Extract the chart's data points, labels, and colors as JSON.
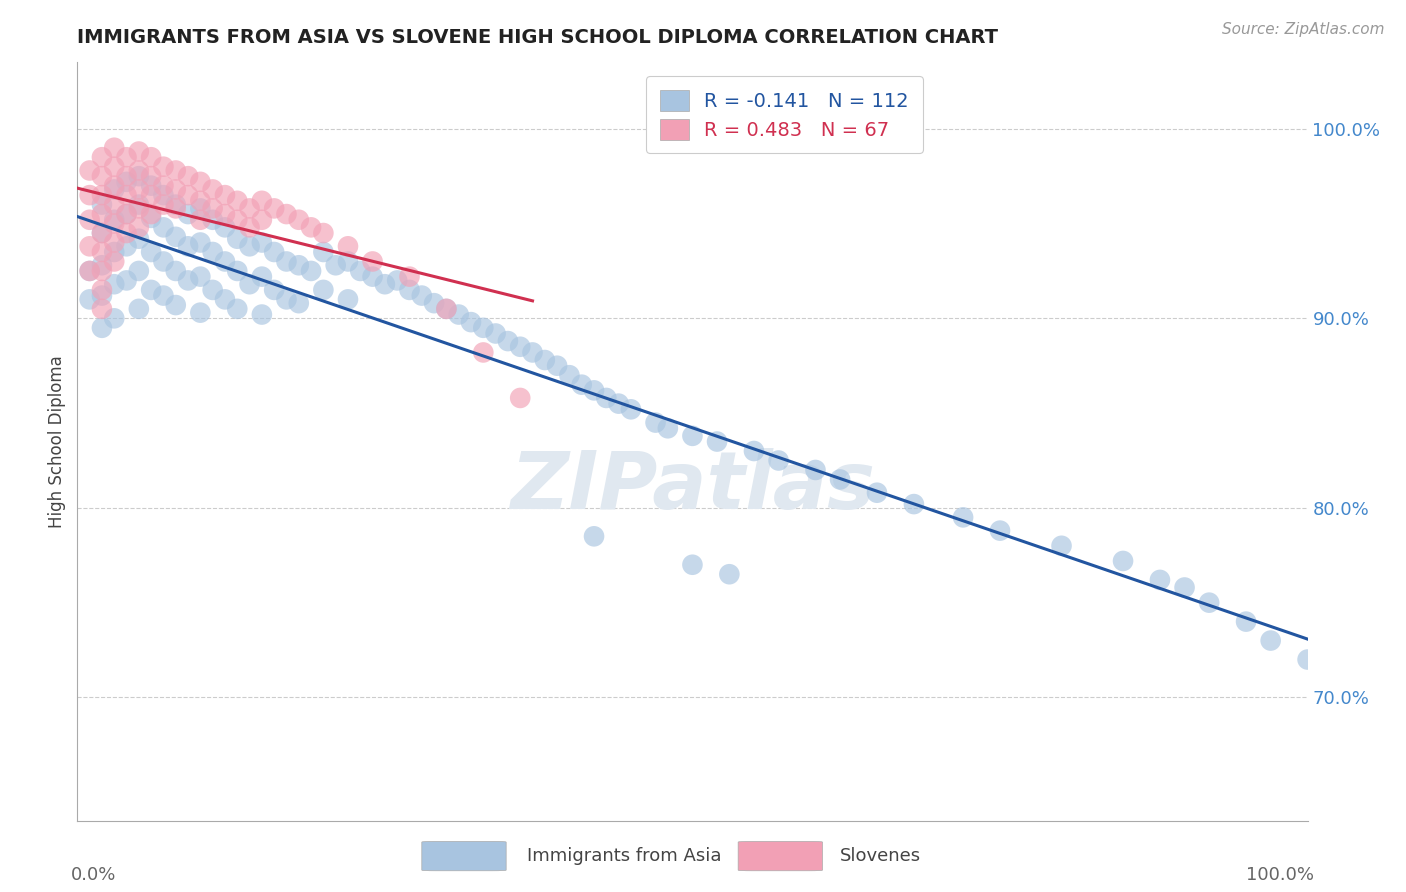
{
  "title": "IMMIGRANTS FROM ASIA VS SLOVENE HIGH SCHOOL DIPLOMA CORRELATION CHART",
  "source": "Source: ZipAtlas.com",
  "ylabel": "High School Diploma",
  "legend_labels": [
    "Immigrants from Asia",
    "Slovenes"
  ],
  "legend_r": [
    -0.141,
    0.483
  ],
  "legend_n": [
    112,
    67
  ],
  "blue_color": "#a8c4e0",
  "pink_color": "#f2a0b5",
  "blue_line_color": "#2255a0",
  "pink_line_color": "#d03050",
  "xlim": [
    0.0,
    1.0
  ],
  "ylim": [
    0.635,
    1.035
  ],
  "right_yticks": [
    0.7,
    0.8,
    0.9,
    1.0
  ],
  "right_yticklabels": [
    "70.0%",
    "80.0%",
    "90.0%",
    "100.0%"
  ],
  "xticklabels": [
    "0.0%",
    "100.0%"
  ],
  "watermark": "ZIPatlas",
  "blue_x": [
    0.01,
    0.01,
    0.02,
    0.02,
    0.02,
    0.02,
    0.02,
    0.03,
    0.03,
    0.03,
    0.03,
    0.03,
    0.04,
    0.04,
    0.04,
    0.04,
    0.05,
    0.05,
    0.05,
    0.05,
    0.05,
    0.06,
    0.06,
    0.06,
    0.06,
    0.07,
    0.07,
    0.07,
    0.07,
    0.08,
    0.08,
    0.08,
    0.08,
    0.09,
    0.09,
    0.09,
    0.1,
    0.1,
    0.1,
    0.1,
    0.11,
    0.11,
    0.11,
    0.12,
    0.12,
    0.12,
    0.13,
    0.13,
    0.13,
    0.14,
    0.14,
    0.15,
    0.15,
    0.15,
    0.16,
    0.16,
    0.17,
    0.17,
    0.18,
    0.18,
    0.19,
    0.2,
    0.2,
    0.21,
    0.22,
    0.22,
    0.23,
    0.24,
    0.25,
    0.26,
    0.27,
    0.28,
    0.29,
    0.3,
    0.31,
    0.32,
    0.33,
    0.34,
    0.35,
    0.36,
    0.37,
    0.38,
    0.39,
    0.4,
    0.41,
    0.42,
    0.43,
    0.44,
    0.45,
    0.47,
    0.48,
    0.5,
    0.52,
    0.55,
    0.57,
    0.6,
    0.62,
    0.65,
    0.68,
    0.72,
    0.75,
    0.8,
    0.85,
    0.88,
    0.9,
    0.92,
    0.95,
    0.97,
    1.0,
    0.5,
    0.53,
    0.42
  ],
  "blue_y": [
    0.925,
    0.91,
    0.96,
    0.945,
    0.928,
    0.912,
    0.895,
    0.968,
    0.952,
    0.935,
    0.918,
    0.9,
    0.972,
    0.955,
    0.938,
    0.92,
    0.975,
    0.96,
    0.942,
    0.925,
    0.905,
    0.97,
    0.953,
    0.935,
    0.915,
    0.965,
    0.948,
    0.93,
    0.912,
    0.96,
    0.943,
    0.925,
    0.907,
    0.955,
    0.938,
    0.92,
    0.958,
    0.94,
    0.922,
    0.903,
    0.952,
    0.935,
    0.915,
    0.948,
    0.93,
    0.91,
    0.942,
    0.925,
    0.905,
    0.938,
    0.918,
    0.94,
    0.922,
    0.902,
    0.935,
    0.915,
    0.93,
    0.91,
    0.928,
    0.908,
    0.925,
    0.935,
    0.915,
    0.928,
    0.93,
    0.91,
    0.925,
    0.922,
    0.918,
    0.92,
    0.915,
    0.912,
    0.908,
    0.905,
    0.902,
    0.898,
    0.895,
    0.892,
    0.888,
    0.885,
    0.882,
    0.878,
    0.875,
    0.87,
    0.865,
    0.862,
    0.858,
    0.855,
    0.852,
    0.845,
    0.842,
    0.838,
    0.835,
    0.83,
    0.825,
    0.82,
    0.815,
    0.808,
    0.802,
    0.795,
    0.788,
    0.78,
    0.772,
    0.762,
    0.758,
    0.75,
    0.74,
    0.73,
    0.72,
    0.77,
    0.765,
    0.785
  ],
  "pink_x": [
    0.01,
    0.01,
    0.01,
    0.01,
    0.01,
    0.02,
    0.02,
    0.02,
    0.02,
    0.02,
    0.02,
    0.02,
    0.02,
    0.02,
    0.03,
    0.03,
    0.03,
    0.03,
    0.03,
    0.03,
    0.03,
    0.04,
    0.04,
    0.04,
    0.04,
    0.04,
    0.05,
    0.05,
    0.05,
    0.05,
    0.05,
    0.06,
    0.06,
    0.06,
    0.06,
    0.07,
    0.07,
    0.07,
    0.08,
    0.08,
    0.08,
    0.09,
    0.09,
    0.1,
    0.1,
    0.1,
    0.11,
    0.11,
    0.12,
    0.12,
    0.13,
    0.13,
    0.14,
    0.14,
    0.15,
    0.15,
    0.16,
    0.17,
    0.18,
    0.19,
    0.2,
    0.22,
    0.24,
    0.27,
    0.3,
    0.33,
    0.36
  ],
  "pink_y": [
    0.978,
    0.965,
    0.952,
    0.938,
    0.925,
    0.985,
    0.975,
    0.965,
    0.955,
    0.945,
    0.935,
    0.925,
    0.915,
    0.905,
    0.99,
    0.98,
    0.97,
    0.96,
    0.95,
    0.94,
    0.93,
    0.985,
    0.975,
    0.965,
    0.955,
    0.945,
    0.988,
    0.978,
    0.968,
    0.958,
    0.948,
    0.985,
    0.975,
    0.965,
    0.955,
    0.98,
    0.97,
    0.96,
    0.978,
    0.968,
    0.958,
    0.975,
    0.965,
    0.972,
    0.962,
    0.952,
    0.968,
    0.958,
    0.965,
    0.955,
    0.962,
    0.952,
    0.958,
    0.948,
    0.962,
    0.952,
    0.958,
    0.955,
    0.952,
    0.948,
    0.945,
    0.938,
    0.93,
    0.922,
    0.905,
    0.882,
    0.858
  ]
}
